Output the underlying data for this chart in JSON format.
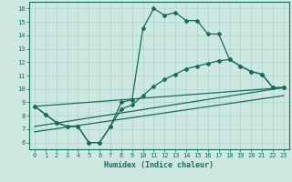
{
  "xlabel": "Humidex (Indice chaleur)",
  "xlim": [
    -0.5,
    23.5
  ],
  "ylim": [
    5.5,
    16.5
  ],
  "xticks": [
    0,
    1,
    2,
    3,
    4,
    5,
    6,
    7,
    8,
    9,
    10,
    11,
    12,
    13,
    14,
    15,
    16,
    17,
    18,
    19,
    20,
    21,
    22,
    23
  ],
  "yticks": [
    6,
    7,
    8,
    9,
    10,
    11,
    12,
    13,
    14,
    15,
    16
  ],
  "background_color": "#cce8e0",
  "grid_color": "#aad4cc",
  "line_color": "#1a6b5a",
  "lines_with_markers": [
    {
      "x": [
        0,
        1,
        2,
        3,
        4,
        5,
        6,
        7,
        8,
        9,
        10,
        11,
        12,
        13,
        14,
        15,
        16,
        17,
        18,
        19,
        20,
        21,
        22,
        23
      ],
      "y": [
        8.7,
        8.1,
        7.5,
        7.2,
        7.2,
        6.0,
        6.0,
        7.2,
        9.0,
        9.2,
        14.5,
        16.0,
        15.5,
        15.7,
        15.1,
        15.1,
        14.1,
        14.1,
        12.2,
        11.7,
        11.3,
        11.1,
        10.1,
        10.1
      ]
    },
    {
      "x": [
        0,
        1,
        2,
        3,
        4,
        5,
        6,
        7,
        8,
        9,
        10,
        11,
        12,
        13,
        14,
        15,
        16,
        17,
        18,
        19,
        20,
        21,
        22,
        23
      ],
      "y": [
        8.7,
        8.1,
        7.5,
        7.2,
        7.2,
        6.0,
        6.0,
        7.2,
        8.5,
        8.8,
        9.5,
        10.2,
        10.7,
        11.1,
        11.5,
        11.7,
        11.9,
        12.1,
        12.2,
        11.7,
        11.3,
        11.1,
        10.1,
        10.1
      ]
    }
  ],
  "lines_plain": [
    {
      "x": [
        0,
        23
      ],
      "y": [
        8.7,
        10.1
      ]
    },
    {
      "x": [
        0,
        23
      ],
      "y": [
        7.2,
        10.1
      ]
    },
    {
      "x": [
        0,
        23
      ],
      "y": [
        6.8,
        9.5
      ]
    }
  ],
  "marker": "D",
  "markersize": 2.0,
  "linewidth": 0.9
}
